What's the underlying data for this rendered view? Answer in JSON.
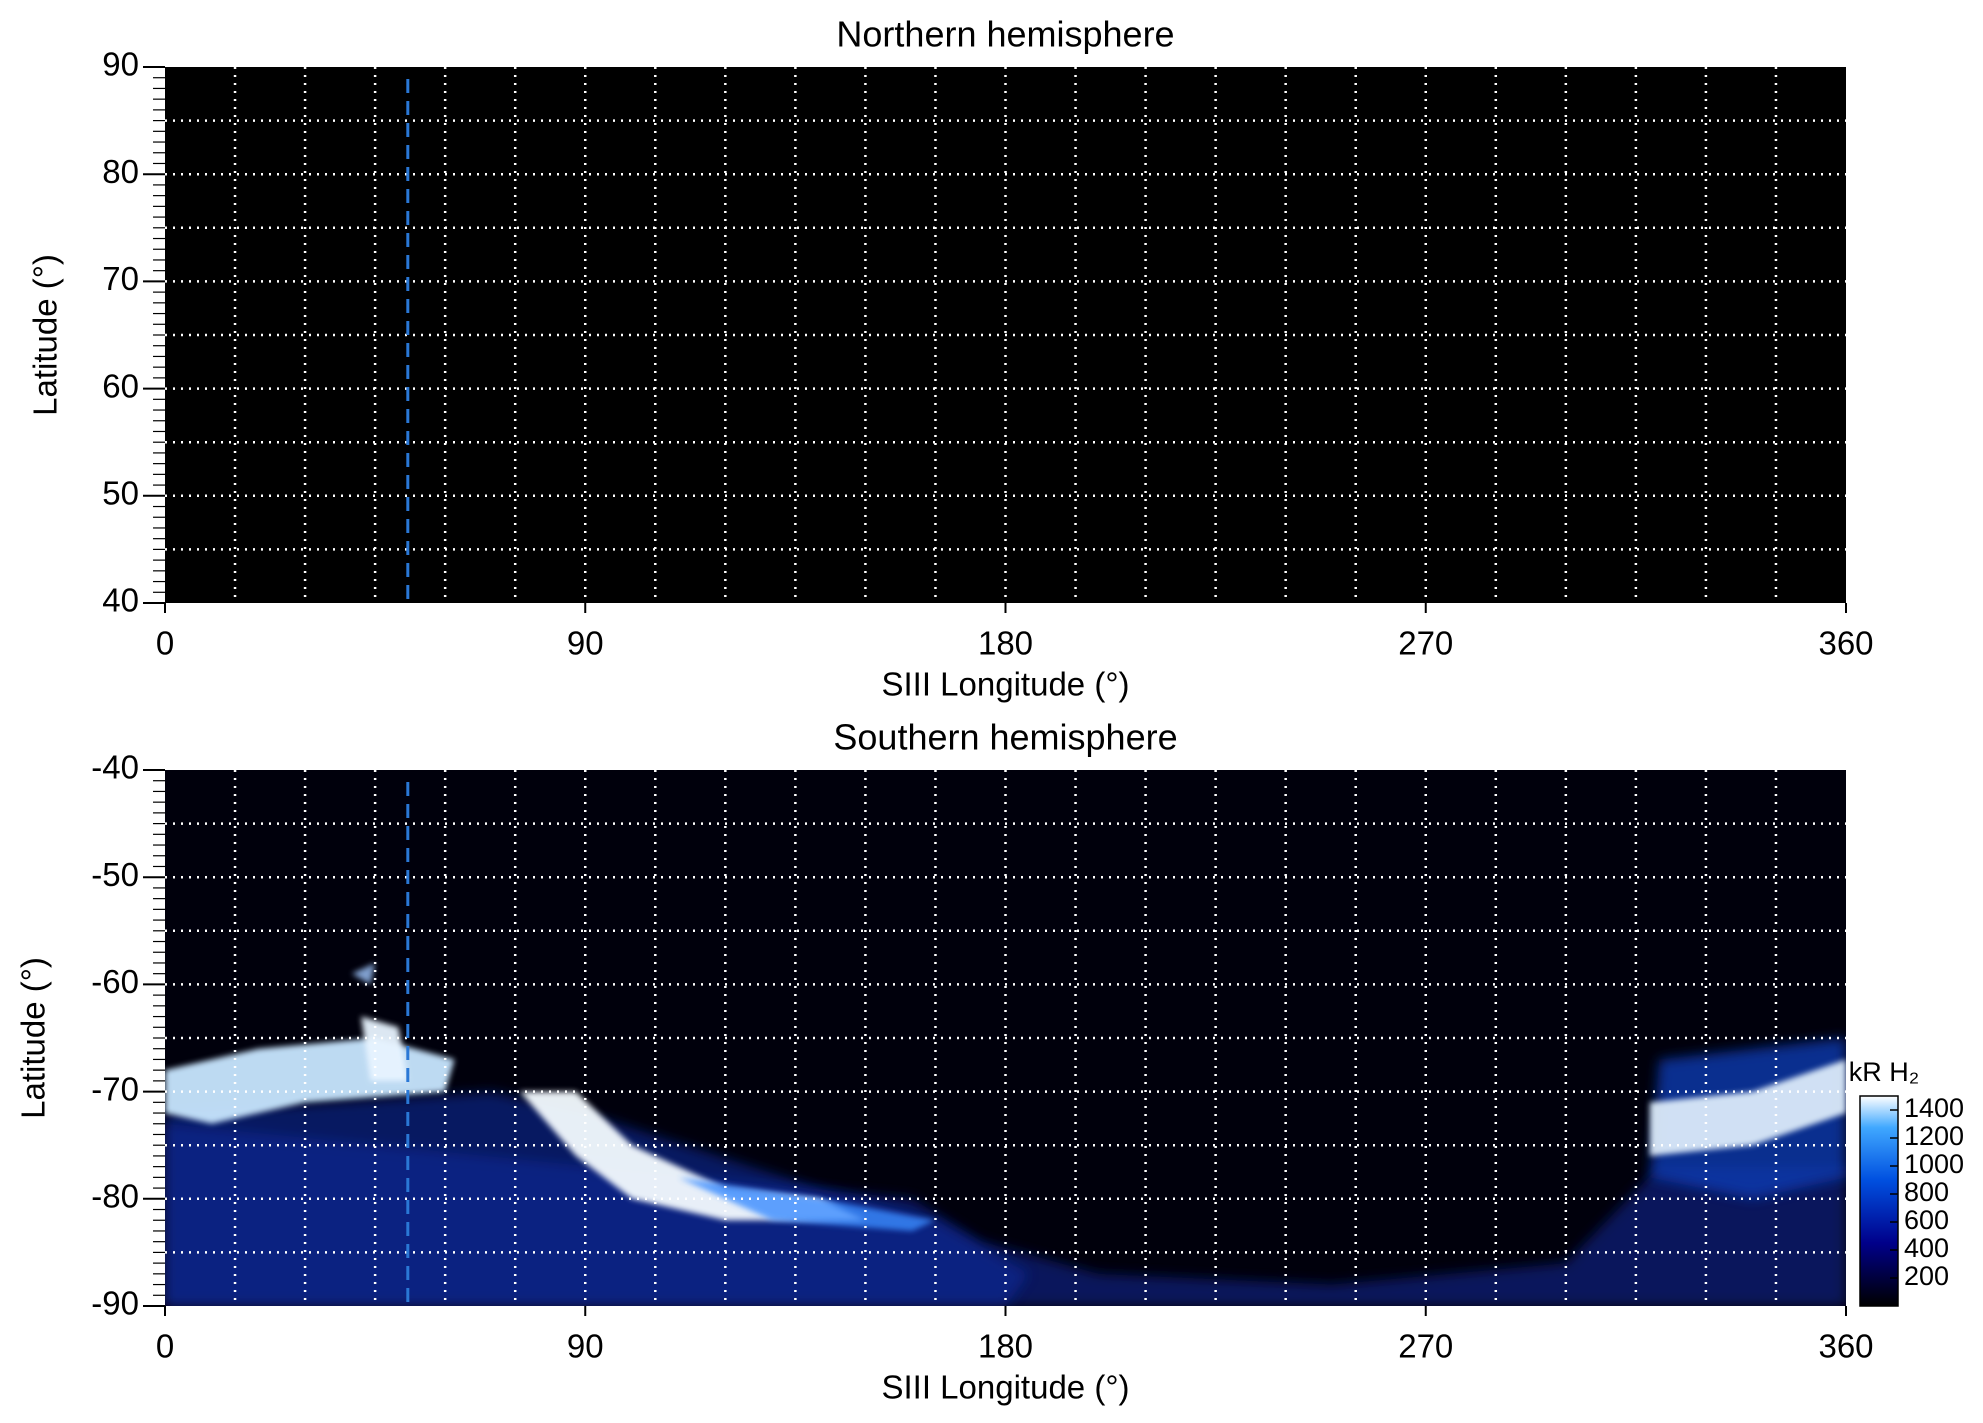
{
  "chart_data": [
    {
      "type": "map",
      "title": "Northern hemisphere",
      "xlabel": "SIII Longitude (°)",
      "ylabel": "Latitude (°)",
      "xlim": [
        0,
        360
      ],
      "xticks": [
        0,
        90,
        180,
        270,
        360
      ],
      "ylim": [
        40,
        90
      ],
      "yticks": [
        40,
        50,
        60,
        70,
        80,
        90
      ],
      "grid": true,
      "grid_step": [
        15,
        5
      ],
      "minor_step": 1,
      "vline": 52,
      "vline_color": "#2a78d6",
      "emission": false
    },
    {
      "type": "map",
      "title": "Southern hemisphere",
      "xlabel": "SIII Longitude (°)",
      "ylabel": "Latitude (°)",
      "xlim": [
        0,
        360
      ],
      "xticks": [
        0,
        90,
        180,
        270,
        360
      ],
      "ylim": [
        -90,
        -40
      ],
      "yticks": [
        -90,
        -80,
        -70,
        -60,
        -50,
        -40
      ],
      "grid": true,
      "grid_step": [
        15,
        5
      ],
      "minor_step": 1,
      "vline": 52,
      "vline_color": "#2a78d6",
      "emission": true,
      "colorbar": {
        "label": "kR H₂",
        "clim": [
          0,
          1500
        ],
        "ticks": [
          200,
          400,
          600,
          800,
          1000,
          1200,
          1400
        ]
      }
    }
  ]
}
